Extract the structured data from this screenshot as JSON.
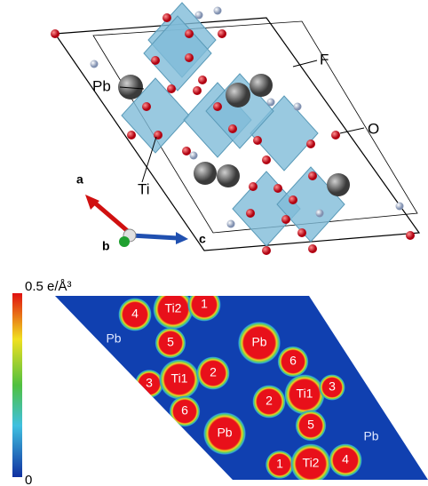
{
  "structure": {
    "labels": {
      "pb": "Pb",
      "f": "F",
      "o": "O",
      "ti": "Ti"
    },
    "axes": [
      "a",
      "b",
      "c"
    ]
  },
  "density_map": {
    "colorbar": {
      "max_label": "0.5 e/Å³",
      "min_label": "0"
    },
    "atom_labels": [
      "4",
      "Ti2",
      "1",
      "Pb",
      "5",
      "Pb",
      "6",
      "3",
      "Ti1",
      "2",
      "6",
      "Pb",
      "2",
      "Ti1",
      "3",
      "5",
      "Pb",
      "1",
      "Ti2",
      "4"
    ]
  }
}
